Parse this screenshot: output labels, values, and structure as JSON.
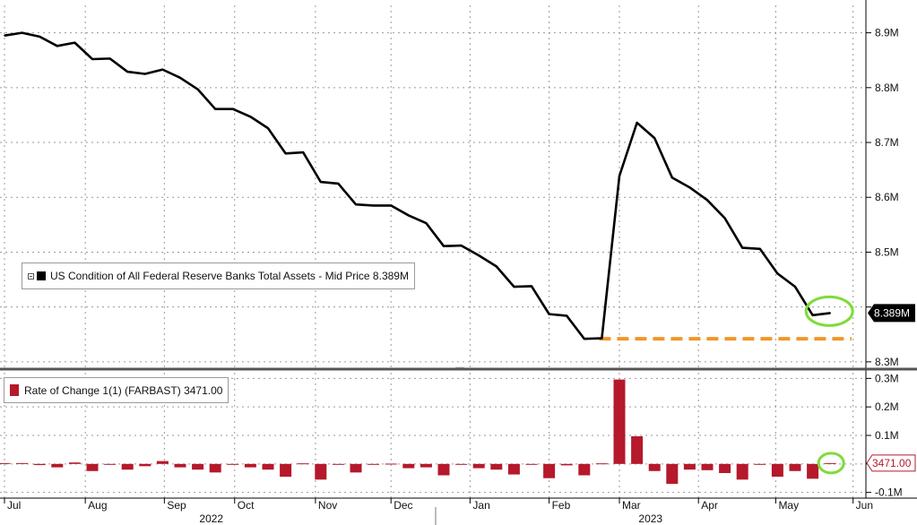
{
  "chart_data": [
    {
      "type": "line",
      "legend": "US Condition of All Federal Reserve Banks Total Assets - Mid Price 8.389M",
      "legend_placement": "left-middle",
      "last_value_label": "8.389M",
      "line_color": "#000000",
      "support_line_color": "#f0962a",
      "highlight_color": "#7ddc3a",
      "grid": true,
      "ylim": [
        8.29,
        8.95
      ],
      "y_ticks": [
        {
          "value": 8.3,
          "label": "8.3M"
        },
        {
          "value": 8.4,
          "label": ""
        },
        {
          "value": 8.5,
          "label": "8.5M"
        },
        {
          "value": 8.6,
          "label": "8.6M"
        },
        {
          "value": 8.7,
          "label": "8.7M"
        },
        {
          "value": 8.8,
          "label": "8.8M"
        },
        {
          "value": 8.9,
          "label": "8.9M"
        }
      ],
      "support_level": 8.342,
      "values": [
        8.895,
        8.9,
        8.893,
        8.876,
        8.882,
        8.852,
        8.853,
        8.829,
        8.825,
        8.833,
        8.818,
        8.797,
        8.761,
        8.761,
        8.747,
        8.726,
        8.68,
        8.682,
        8.628,
        8.625,
        8.587,
        8.585,
        8.585,
        8.567,
        8.553,
        8.511,
        8.512,
        8.494,
        8.474,
        8.437,
        8.438,
        8.387,
        8.384,
        8.342,
        8.343,
        8.639,
        8.736,
        8.708,
        8.636,
        8.618,
        8.595,
        8.562,
        8.508,
        8.506,
        8.461,
        8.437,
        8.385,
        8.389
      ]
    },
    {
      "type": "bar",
      "legend": "Rate of Change 1(1) (FARBAST) 3471.00",
      "legend_placement": "top-left",
      "last_value_label": "3471.00",
      "bar_color": "#b5192b",
      "ylim": [
        -0.12,
        0.32
      ],
      "y_ticks": [
        {
          "value": -0.1,
          "label": "-0.1M"
        },
        {
          "value": 0.0,
          "label": ""
        },
        {
          "value": 0.1,
          "label": "0.1M"
        },
        {
          "value": 0.2,
          "label": "0.2M"
        },
        {
          "value": 0.3,
          "label": "0.3M"
        }
      ],
      "values": [
        0.003,
        0.003,
        -0.004,
        -0.012,
        0.005,
        -0.025,
        -0.002,
        -0.02,
        -0.008,
        0.01,
        -0.012,
        -0.02,
        -0.03,
        -0.003,
        -0.012,
        -0.02,
        -0.045,
        0.002,
        -0.055,
        -0.003,
        -0.03,
        -0.003,
        0.001,
        -0.015,
        -0.012,
        -0.04,
        -0.003,
        -0.015,
        -0.02,
        -0.037,
        -0.003,
        -0.05,
        -0.005,
        -0.04,
        0.002,
        0.296,
        0.097,
        -0.025,
        -0.07,
        -0.02,
        -0.022,
        -0.032,
        -0.055,
        -0.003,
        -0.045,
        -0.025,
        -0.052,
        0.003
      ]
    }
  ],
  "x_axis": {
    "months": [
      {
        "label": "Jul",
        "idx": 0
      },
      {
        "label": "Aug",
        "idx": 4.6
      },
      {
        "label": "Sep",
        "idx": 9.1
      },
      {
        "label": "Oct",
        "idx": 13.1
      },
      {
        "label": "Nov",
        "idx": 17.7
      },
      {
        "label": "Dec",
        "idx": 22
      },
      {
        "label": "Jan",
        "idx": 26.5
      },
      {
        "label": "Feb",
        "idx": 31
      },
      {
        "label": "Mar",
        "idx": 35
      },
      {
        "label": "Apr",
        "idx": 39.5
      },
      {
        "label": "May",
        "idx": 43.9
      },
      {
        "label": "Jun",
        "idx": 48.3
      }
    ],
    "years": [
      {
        "label": "2022",
        "idx": 11.5
      },
      {
        "label": "2023",
        "idx": 36.5
      }
    ]
  }
}
